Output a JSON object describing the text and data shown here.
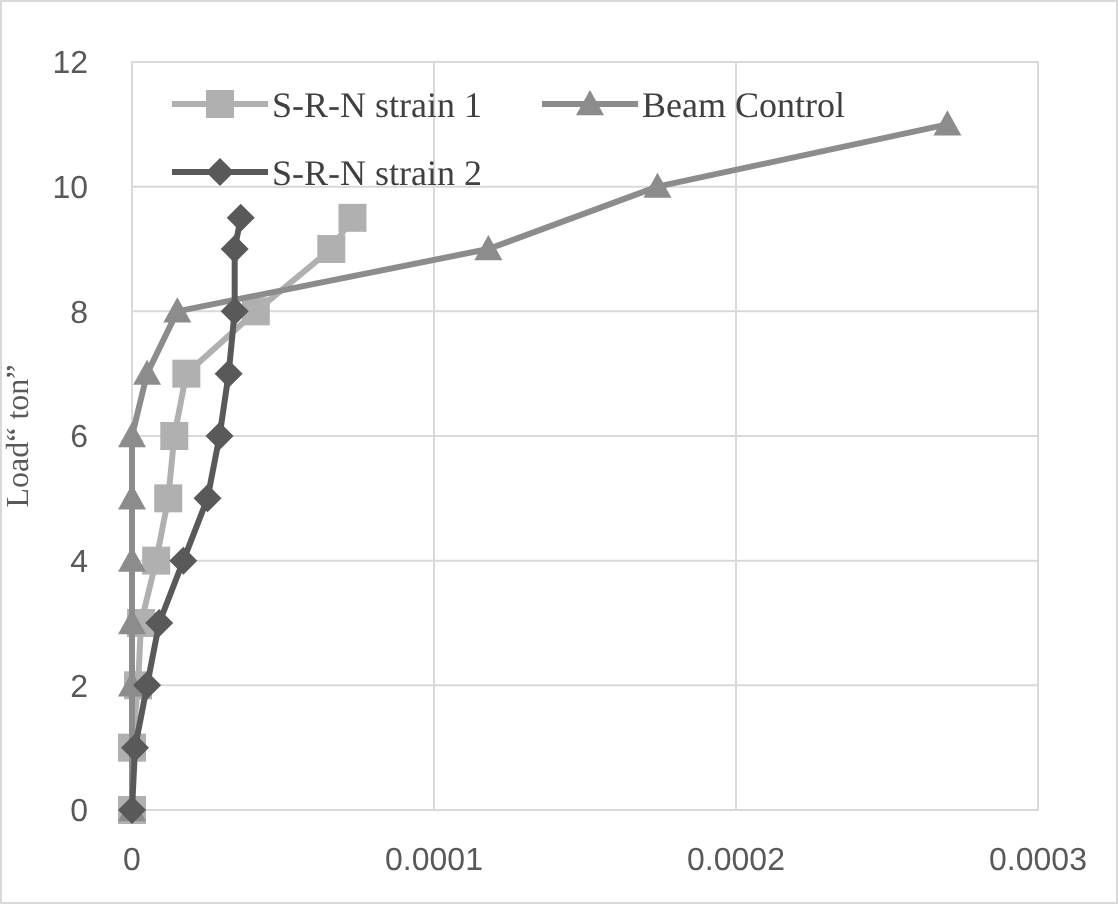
{
  "chart_data": {
    "type": "line",
    "ylabel": "Load“ ton”",
    "xlim": [
      0,
      0.0003
    ],
    "ylim": [
      0,
      12
    ],
    "xticks": [
      0,
      0.0001,
      0.0002,
      0.0003
    ],
    "yticks": [
      0,
      2,
      4,
      6,
      8,
      10,
      12
    ],
    "grid": true,
    "legend": "top",
    "line_style": "solid",
    "series": [
      {
        "name": "S-R-N strain 1",
        "color": "#b0b0b0",
        "marker": "square",
        "x": [
          0,
          0,
          2e-06,
          3e-06,
          8e-06,
          1.2e-05,
          1.4e-05,
          1.8e-05,
          4.1e-05,
          6.6e-05,
          7.3e-05
        ],
        "values": [
          0,
          1,
          2,
          3,
          4,
          5,
          6,
          7,
          8,
          9,
          9.5
        ]
      },
      {
        "name": "Beam Control",
        "color": "#8c8c8c",
        "marker": "triangle",
        "x": [
          0,
          null,
          0,
          0,
          0,
          0,
          0,
          5e-06,
          1.5e-05,
          0.000118,
          0.000174,
          0.00027
        ],
        "values": [
          0,
          null,
          2,
          3,
          4,
          5,
          6,
          7,
          8,
          9,
          10,
          11
        ]
      },
      {
        "name": "S-R-N strain 2",
        "color": "#595959",
        "marker": "diamond",
        "x": [
          0,
          1e-06,
          5e-06,
          9e-06,
          1.7e-05,
          2.5e-05,
          2.9e-05,
          3.2e-05,
          3.4e-05,
          3.4e-05,
          3.6e-05
        ],
        "values": [
          0,
          1,
          2,
          3,
          4,
          5,
          6,
          7,
          8,
          9,
          9.5
        ]
      }
    ]
  }
}
